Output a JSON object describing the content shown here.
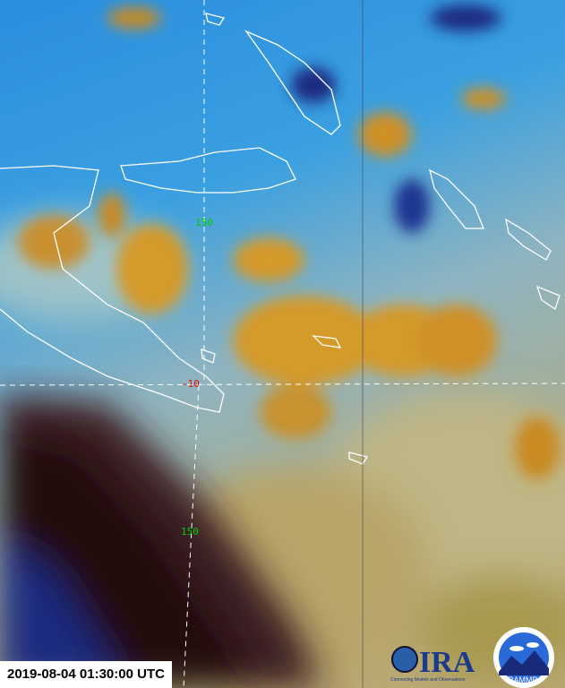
{
  "image": {
    "type": "satellite-imagery",
    "colors": {
      "clear_ocean": "#2f8fd8",
      "high_cloud": "#d49a2a",
      "low_cloud": "#c9c08a",
      "dark_land": "#2a0c10",
      "coastline": "#ffffff",
      "grid_line": "#ffffff"
    }
  },
  "grid_labels": {
    "lon_top": {
      "text": "150",
      "color": "#00cc00"
    },
    "lat": {
      "text": "-10",
      "color": "#dd1111"
    },
    "lon_bottom": {
      "text": "150",
      "color": "#00cc00"
    }
  },
  "timestamp": "2019-08-04 01:30:00 UTC",
  "logos": {
    "cira": {
      "text": "CIRA",
      "tagline": "Connecting Models and Observations"
    },
    "rammb": {
      "text": "RAMMB",
      "ring_text": "Regional and Mesoscale Meteorology Branch"
    }
  }
}
